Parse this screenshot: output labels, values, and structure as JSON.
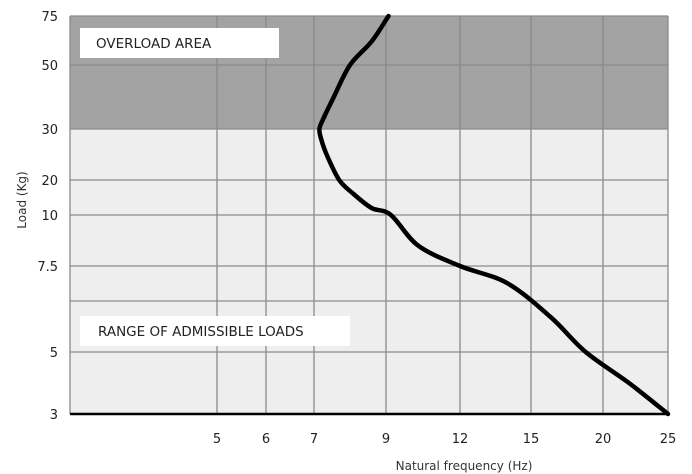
{
  "chart_data": {
    "type": "line",
    "xlabel": "Natural frequency (Hz)",
    "ylabel": "Load (Kg)",
    "x_ticks": [
      "5",
      "6",
      "7",
      "9",
      "12",
      "15",
      "20",
      "25"
    ],
    "y_ticks": [
      "3",
      "5",
      "7.5",
      "10",
      "20",
      "30",
      "50",
      "75"
    ],
    "regions": {
      "overload": {
        "label": "OVERLOAD AREA",
        "from": "30",
        "to": "75",
        "color": "#a3a3a3"
      },
      "admissible": {
        "label": "RANGE OF ADMISSIBLE LOADS",
        "from": "3",
        "to": "30",
        "color": "#eeeeee"
      }
    },
    "grid": true,
    "series": [
      {
        "color": "#000000",
        "x": [
          25,
          22,
          18.8,
          16.4,
          14,
          12,
          10.3,
          9.2,
          8.6,
          8.1,
          7.7,
          7.35,
          7.2,
          7.15,
          7.25,
          7.55,
          8.0,
          8.6,
          9.1
        ],
        "y": [
          3,
          4,
          5,
          6,
          7,
          7.5,
          8.5,
          10,
          12,
          16,
          20,
          25,
          28,
          30,
          33,
          40,
          50,
          62,
          75
        ]
      }
    ]
  }
}
